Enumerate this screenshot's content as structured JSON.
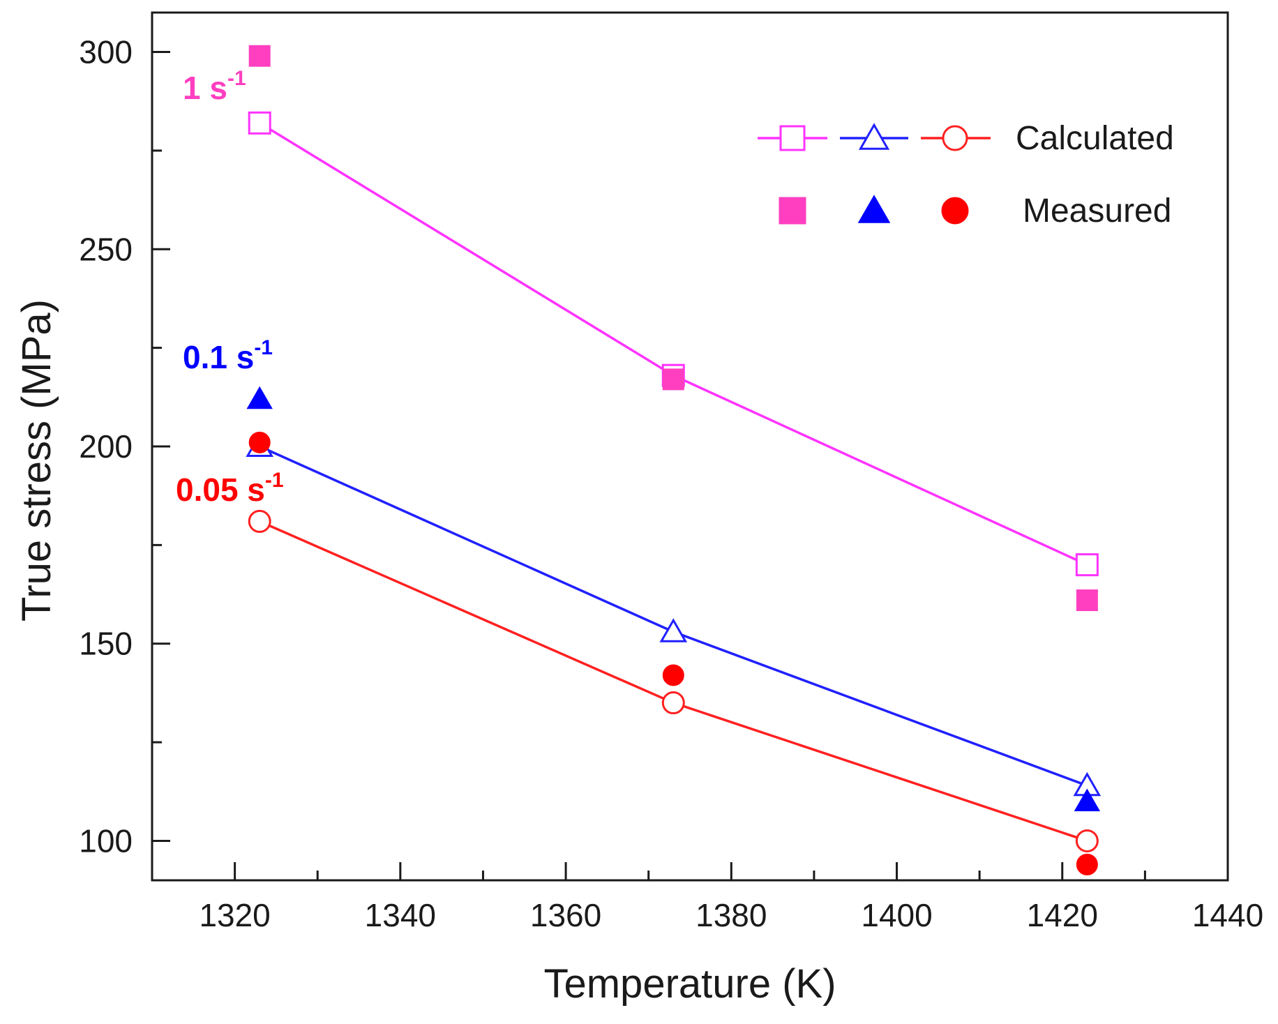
{
  "chart_data": {
    "type": "line",
    "xlabel": "Temperature (K)",
    "ylabel": "True stress (MPa)",
    "xlim": [
      1310,
      1440
    ],
    "ylim": [
      90,
      310
    ],
    "xticks": [
      1320,
      1340,
      1360,
      1380,
      1400,
      1420,
      1440
    ],
    "yticks": [
      100,
      150,
      200,
      250,
      300
    ],
    "grid": false,
    "legend_position": "top-right",
    "legend": {
      "calculated_label": "Calculated",
      "measured_label": "Measured"
    },
    "x": [
      1323,
      1373,
      1423
    ],
    "series": [
      {
        "name": "1 s-1",
        "rate": "1 s",
        "exponent": "-1",
        "color": "#ff33ff",
        "measured_color": "#ff3fc0",
        "marker": "square",
        "calculated": [
          282,
          218,
          170
        ],
        "measured": [
          299,
          217,
          161
        ]
      },
      {
        "name": "0.1 s-1",
        "rate": "0.1 s",
        "exponent": "-1",
        "color": "#2020ff",
        "measured_color": "#0000ff",
        "marker": "triangle",
        "calculated": [
          200,
          153,
          114
        ],
        "measured": [
          212,
          null,
          110
        ]
      },
      {
        "name": "0.05 s-1",
        "rate": "0.05 s",
        "exponent": "-1",
        "color": "#ff2020",
        "measured_color": "#ff0000",
        "marker": "circle",
        "calculated": [
          181,
          135,
          100
        ],
        "measured": [
          201,
          142,
          94
        ]
      }
    ]
  }
}
